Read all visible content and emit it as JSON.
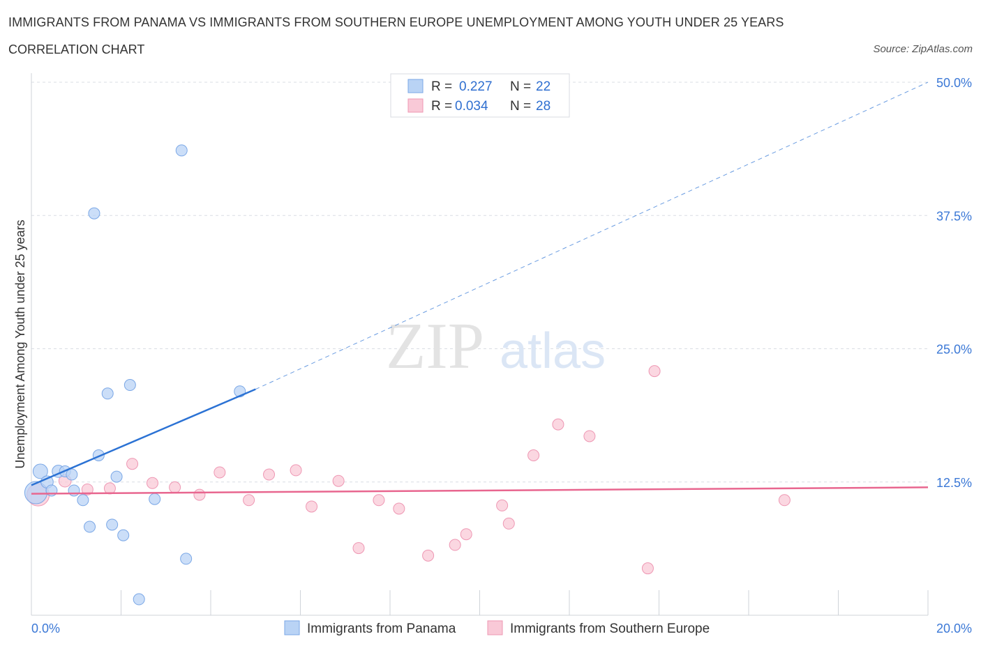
{
  "title": "IMMIGRANTS FROM PANAMA VS IMMIGRANTS FROM SOUTHERN EUROPE UNEMPLOYMENT AMONG YOUTH UNDER 25 YEARS",
  "subtitle": "CORRELATION CHART",
  "source": "Source: ZipAtlas.com",
  "watermark": {
    "zip": "ZIP",
    "atlas": "atlas"
  },
  "colors": {
    "panama_fill": "#b9d3f5",
    "panama_stroke": "#7aa7e6",
    "panama_line": "#2b72d4",
    "europe_fill": "#f9c9d7",
    "europe_stroke": "#ee97b3",
    "europe_line": "#e8668f",
    "grid": "#d9dde3",
    "tick_text": "#3b78d6"
  },
  "legend": {
    "rows": [
      {
        "r_label": "R = ",
        "r_value": "0.227",
        "n_label": "N = ",
        "n_value": "22"
      },
      {
        "r_label": "R = ",
        "r_value": "0.034",
        "n_label": "N = ",
        "n_value": "28"
      }
    ]
  },
  "bottom_legend": [
    "Immigrants from Panama",
    "Immigrants from Southern Europe"
  ],
  "chart_data": {
    "type": "scatter",
    "xlabel": "",
    "ylabel": "Unemployment Among Youth under 25 years",
    "xlim": [
      0,
      20
    ],
    "ylim": [
      0,
      50
    ],
    "x_tick_labels": [
      {
        "value": 0,
        "label": "0.0%"
      },
      {
        "value": 20,
        "label": "20.0%"
      }
    ],
    "y_tick_labels": [
      {
        "value": 12.5,
        "label": "12.5%"
      },
      {
        "value": 25,
        "label": "25.0%"
      },
      {
        "value": 37.5,
        "label": "37.5%"
      },
      {
        "value": 50,
        "label": "50.0%"
      }
    ],
    "x_minor_ticks": [
      0,
      2,
      4,
      6,
      8,
      10,
      12,
      14,
      16,
      18,
      20
    ],
    "series": [
      {
        "name": "Immigrants from Panama",
        "points": [
          {
            "x": 0.1,
            "y": 11.5,
            "s": 2
          },
          {
            "x": 0.2,
            "y": 13.5,
            "s": 1.3
          },
          {
            "x": 0.35,
            "y": 12.5,
            "s": 1.1
          },
          {
            "x": 0.45,
            "y": 11.7,
            "s": 1
          },
          {
            "x": 0.6,
            "y": 13.5,
            "s": 1.1
          },
          {
            "x": 0.75,
            "y": 13.5,
            "s": 1
          },
          {
            "x": 0.9,
            "y": 13.2,
            "s": 1
          },
          {
            "x": 0.95,
            "y": 11.7,
            "s": 1
          },
          {
            "x": 1.15,
            "y": 10.8,
            "s": 1
          },
          {
            "x": 1.3,
            "y": 8.3,
            "s": 1
          },
          {
            "x": 1.4,
            "y": 37.7,
            "s": 1
          },
          {
            "x": 1.5,
            "y": 15.0,
            "s": 1
          },
          {
            "x": 1.7,
            "y": 20.8,
            "s": 1
          },
          {
            "x": 1.8,
            "y": 8.5,
            "s": 1
          },
          {
            "x": 1.9,
            "y": 13.0,
            "s": 1
          },
          {
            "x": 2.05,
            "y": 7.5,
            "s": 1
          },
          {
            "x": 2.2,
            "y": 21.6,
            "s": 1
          },
          {
            "x": 2.4,
            "y": 1.5,
            "s": 1
          },
          {
            "x": 2.75,
            "y": 10.9,
            "s": 1
          },
          {
            "x": 3.35,
            "y": 43.6,
            "s": 1
          },
          {
            "x": 3.45,
            "y": 5.3,
            "s": 1
          },
          {
            "x": 4.65,
            "y": 21.0,
            "s": 1
          }
        ],
        "trend": {
          "x0": 0,
          "y0": 12.2,
          "x1": 5.0,
          "y1": 21.2,
          "dashed_to": {
            "x": 20,
            "y": 50
          }
        }
      },
      {
        "name": "Immigrants from Southern Europe",
        "points": [
          {
            "x": 0.15,
            "y": 11.3,
            "s": 2
          },
          {
            "x": 0.75,
            "y": 12.6,
            "s": 1.1
          },
          {
            "x": 1.25,
            "y": 11.8,
            "s": 1
          },
          {
            "x": 1.75,
            "y": 11.9,
            "s": 1
          },
          {
            "x": 2.25,
            "y": 14.2,
            "s": 1
          },
          {
            "x": 2.7,
            "y": 12.4,
            "s": 1
          },
          {
            "x": 3.2,
            "y": 12.0,
            "s": 1
          },
          {
            "x": 3.75,
            "y": 11.3,
            "s": 1
          },
          {
            "x": 4.2,
            "y": 13.4,
            "s": 1
          },
          {
            "x": 4.85,
            "y": 10.8,
            "s": 1
          },
          {
            "x": 5.3,
            "y": 13.2,
            "s": 1
          },
          {
            "x": 5.9,
            "y": 13.6,
            "s": 1
          },
          {
            "x": 6.25,
            "y": 10.2,
            "s": 1
          },
          {
            "x": 6.85,
            "y": 12.6,
            "s": 1
          },
          {
            "x": 7.3,
            "y": 6.3,
            "s": 1
          },
          {
            "x": 7.75,
            "y": 10.8,
            "s": 1
          },
          {
            "x": 8.2,
            "y": 10.0,
            "s": 1
          },
          {
            "x": 8.85,
            "y": 5.6,
            "s": 1
          },
          {
            "x": 9.45,
            "y": 6.6,
            "s": 1
          },
          {
            "x": 9.7,
            "y": 7.6,
            "s": 1
          },
          {
            "x": 10.5,
            "y": 10.3,
            "s": 1
          },
          {
            "x": 10.65,
            "y": 8.6,
            "s": 1
          },
          {
            "x": 11.2,
            "y": 15.0,
            "s": 1
          },
          {
            "x": 11.75,
            "y": 17.9,
            "s": 1
          },
          {
            "x": 12.45,
            "y": 16.8,
            "s": 1
          },
          {
            "x": 13.75,
            "y": 4.4,
            "s": 1
          },
          {
            "x": 13.9,
            "y": 22.9,
            "s": 1
          },
          {
            "x": 16.8,
            "y": 10.8,
            "s": 1
          }
        ],
        "trend": {
          "x0": 0,
          "y0": 11.4,
          "x1": 20,
          "y1": 12.0
        }
      }
    ]
  }
}
